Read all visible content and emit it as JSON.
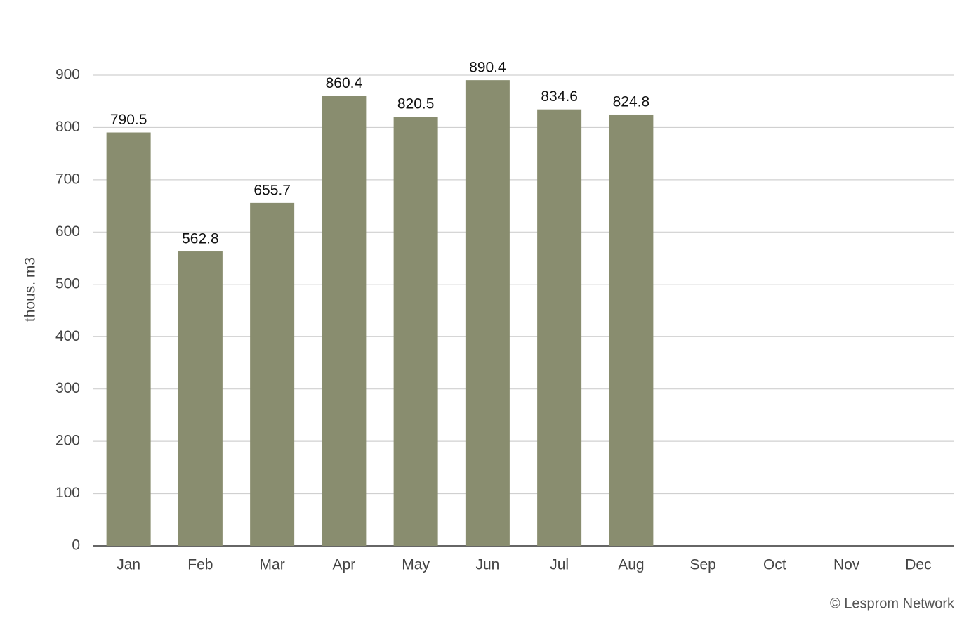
{
  "chart_data": {
    "type": "bar",
    "y_label": "thous. m3",
    "source": "© Lesprom Network",
    "categories": [
      "Jan",
      "Feb",
      "Mar",
      "Apr",
      "May",
      "Jun",
      "Jul",
      "Aug",
      "Sep",
      "Oct",
      "Nov",
      "Dec"
    ],
    "values": [
      790.5,
      562.8,
      655.7,
      860.4,
      820.5,
      890.4,
      834.6,
      824.8,
      null,
      null,
      null,
      null
    ],
    "color": "#898d6f",
    "ylim": [
      0,
      900
    ],
    "yticks": [
      0,
      100,
      200,
      300,
      400,
      500,
      600,
      700,
      800,
      900
    ],
    "grid": true
  }
}
